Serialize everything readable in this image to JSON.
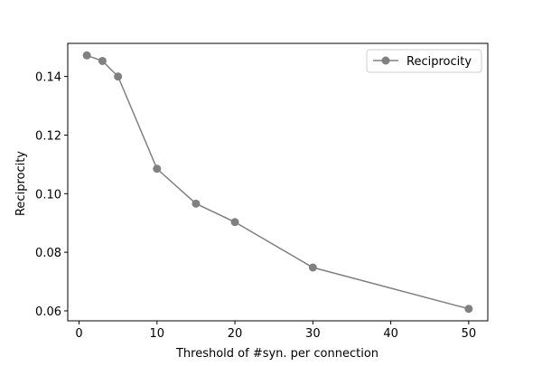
{
  "chart_data": {
    "type": "line",
    "title": "",
    "xlabel": "Threshold of #syn. per connection",
    "ylabel": "Reciprocity",
    "xlim": [
      -1.45,
      52.45
    ],
    "ylim": [
      0.0566,
      0.1513
    ],
    "xticks": [
      0,
      10,
      20,
      30,
      40,
      50
    ],
    "xtick_labels": [
      "0",
      "10",
      "20",
      "30",
      "40",
      "50"
    ],
    "yticks": [
      0.06,
      0.08,
      0.1,
      0.12,
      0.14
    ],
    "ytick_labels": [
      "0.06",
      "0.08",
      "0.10",
      "0.12",
      "0.14"
    ],
    "grid": false,
    "legend_position": "top-right",
    "series": [
      {
        "name": "Reciprocity",
        "color": "#808080",
        "marker": "circle",
        "x": [
          1,
          3,
          5,
          10,
          15,
          20,
          30,
          50
        ],
        "y": [
          0.1472,
          0.1453,
          0.14,
          0.1085,
          0.0966,
          0.0903,
          0.0748,
          0.0607
        ]
      }
    ]
  }
}
